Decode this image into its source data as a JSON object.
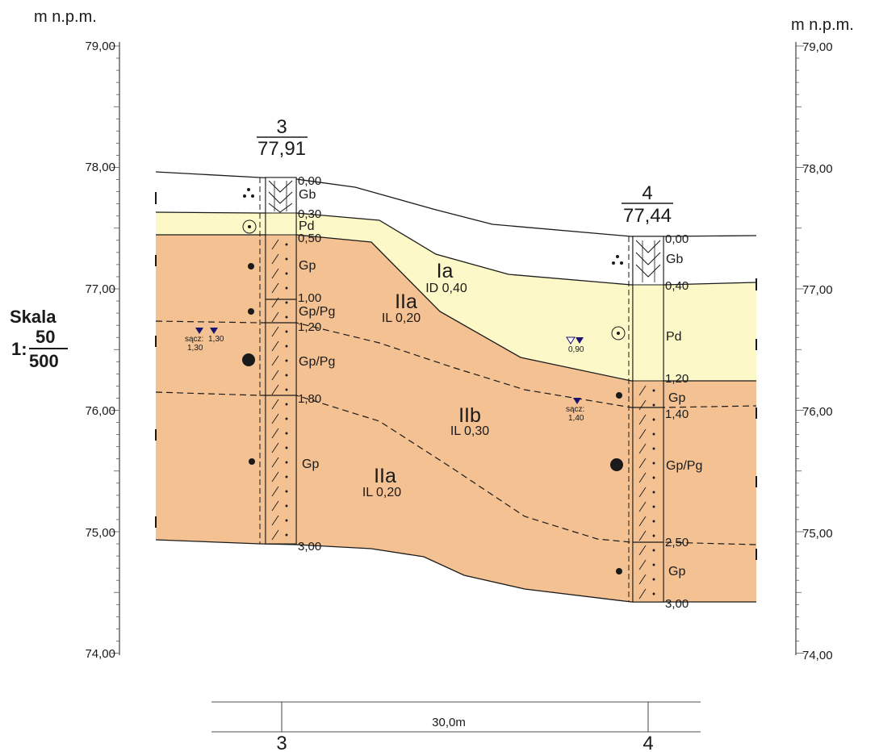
{
  "axis": {
    "unit_label": "m n.p.m.",
    "ticks": [
      "79,00",
      "78,00",
      "77,00",
      "76,00",
      "75,00",
      "74,00"
    ]
  },
  "scale": {
    "label": "Skala",
    "prefix": "1:",
    "vertical": "50",
    "horizontal": "500"
  },
  "boreholes": [
    {
      "number": "3",
      "elevation": "77,91",
      "depth_labels": [
        "0,00",
        "0,30",
        "0,50",
        "1,00",
        "1,20",
        "1,80",
        "3,00"
      ],
      "soil_labels": [
        "Gb",
        "Pd",
        "Gp",
        "Gp/Pg",
        "Gp/Pg",
        "Gp"
      ],
      "water": {
        "label": "sącz:",
        "depth1": "1,30",
        "depth2": "1,30"
      }
    },
    {
      "number": "4",
      "elevation": "77,44",
      "depth_labels": [
        "0,00",
        "0,40",
        "1,20",
        "1,40",
        "2,50",
        "3,00"
      ],
      "soil_labels": [
        "Gb",
        "Pd",
        "Gp",
        "Gp/Pg",
        "Gp"
      ],
      "water_observed": {
        "depth": "0,90"
      },
      "water": {
        "label": "sącz:",
        "depth": "1,40"
      }
    }
  ],
  "units": [
    {
      "name": "Ia",
      "param": "ID 0,40"
    },
    {
      "name": "IIa",
      "param": "IL 0,20"
    },
    {
      "name": "IIb",
      "param": "IL 0,30"
    },
    {
      "name": "IIa",
      "param": "IL 0,20"
    }
  ],
  "distance": {
    "label": "30,0m",
    "left": "3",
    "right": "4"
  },
  "colors": {
    "sand_layer": "#fdf8c8",
    "clay_layer": "#f4c193",
    "water_symbol": "#1a1470",
    "line": "#1a1a1a"
  }
}
